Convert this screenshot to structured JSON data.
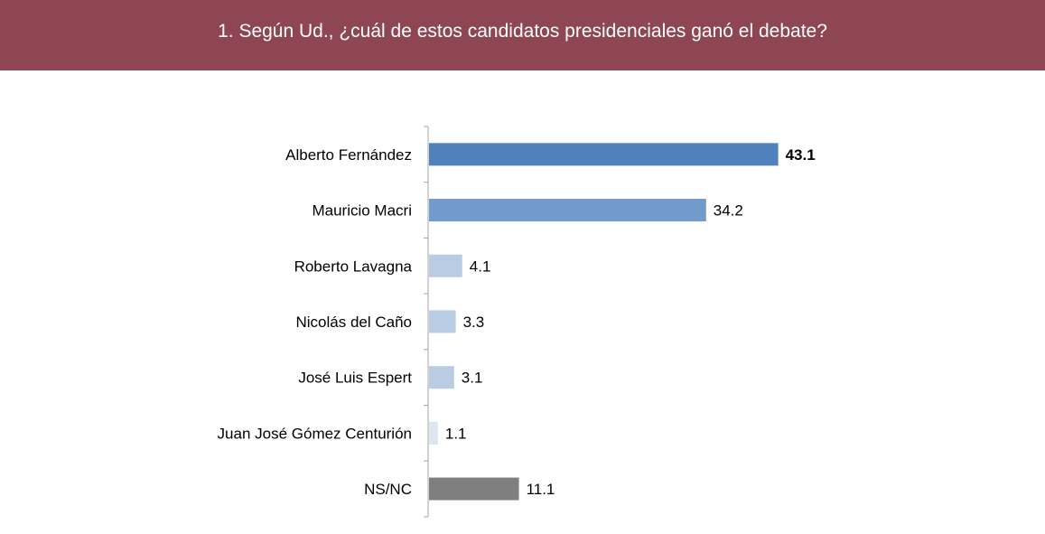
{
  "header": {
    "title": "1. Según Ud., ¿cuál de estos candidatos presidenciales ganó el debate?"
  },
  "colors": {
    "header_bg": "#8e4652",
    "bar_colors": [
      "#4f81bd",
      "#729aca",
      "#b9cce4",
      "#b9cce4",
      "#b9cce4",
      "#dce6f2",
      "#7f7f7f"
    ]
  },
  "chart_data": {
    "type": "bar",
    "orientation": "horizontal",
    "categories": [
      "Alberto Fernández",
      "Mauricio Macri",
      "Roberto Lavagna",
      "Nicolás del Caño",
      "José Luis Espert",
      "Juan José Gómez Centurión",
      "NS/NC"
    ],
    "values": [
      43.1,
      34.2,
      4.1,
      3.3,
      3.1,
      1.1,
      11.1
    ],
    "value_labels": [
      "43.1",
      "34.2",
      "4.1",
      "3.3",
      "3.1",
      "1.1",
      "11.1"
    ],
    "bold_value_index": 0,
    "xlim": [
      0,
      50
    ],
    "grid": false,
    "legend": "none"
  }
}
